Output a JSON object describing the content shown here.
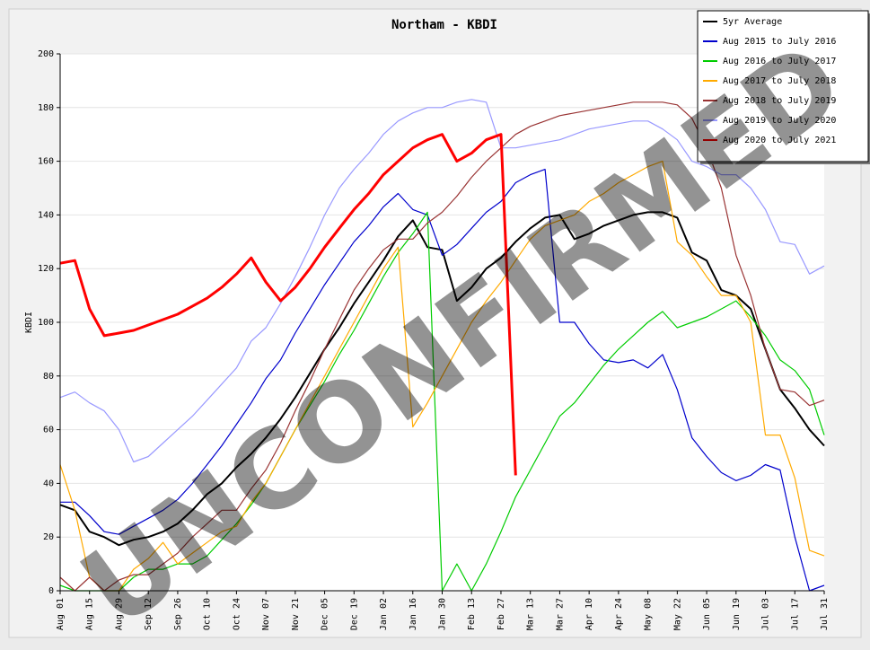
{
  "chart_data": {
    "type": "line",
    "title": "Northam  - KBDI",
    "y_label": "KBDI",
    "watermark": "UNCONFIRMED",
    "categories": [
      "Aug 01",
      null,
      "Aug 15",
      null,
      "Aug 29",
      null,
      "Sep 12",
      null,
      "Sep 26",
      null,
      "Oct 10",
      null,
      "Oct 24",
      null,
      "Nov 07",
      null,
      "Nov 21",
      null,
      "Dec 05",
      null,
      "Dec 19",
      null,
      "Jan 02",
      null,
      "Jan 16",
      null,
      "Jan 30",
      null,
      "Feb 13",
      null,
      "Feb 27",
      null,
      "Mar 13",
      null,
      "Mar 27",
      null,
      "Apr 10",
      null,
      "Apr 24",
      null,
      "May 08",
      null,
      "May 22",
      null,
      "Jun 05",
      null,
      "Jun 19",
      null,
      "Jul 03",
      null,
      "Jul 17",
      null,
      "Jul 31"
    ],
    "ylim": [
      0,
      200
    ],
    "yticks": [
      0,
      20,
      40,
      60,
      80,
      100,
      120,
      140,
      160,
      180,
      200
    ],
    "grid": true,
    "legend": "top-right",
    "series": [
      {
        "name": "5yr Average",
        "color": "#000000",
        "values": [
          32,
          30,
          22,
          20,
          17,
          19,
          20,
          22,
          25,
          30,
          36,
          40,
          46,
          51,
          57,
          64,
          72,
          81,
          90,
          98,
          107,
          115,
          123,
          132,
          138,
          128,
          127,
          108,
          113,
          120,
          124,
          130,
          135,
          139,
          140,
          131,
          133,
          136,
          138,
          140,
          141,
          141,
          139,
          126,
          123,
          112,
          110,
          105,
          90,
          75,
          68,
          60,
          54
        ]
      },
      {
        "name": "Aug 2015 to July 2016",
        "color": "#0000cc",
        "values": [
          33,
          33,
          28,
          22,
          21,
          24,
          27,
          30,
          34,
          40,
          47,
          54,
          62,
          70,
          79,
          86,
          96,
          105,
          114,
          122,
          130,
          136,
          143,
          148,
          142,
          140,
          125,
          129,
          135,
          141,
          145,
          152,
          155,
          157,
          100,
          100,
          92,
          86,
          85,
          86,
          83,
          88,
          75,
          57,
          50,
          44,
          41,
          43,
          47,
          45,
          20,
          0,
          2
        ]
      },
      {
        "name": "Aug 2016 to July 2017",
        "color": "#00cc00",
        "values": [
          2,
          0,
          0,
          0,
          0,
          5,
          8,
          8,
          10,
          10,
          13,
          19,
          25,
          32,
          40,
          50,
          60,
          69,
          78,
          88,
          97,
          107,
          117,
          126,
          133,
          141,
          0,
          10,
          0,
          10,
          22,
          35,
          45,
          55,
          65,
          70,
          77,
          84,
          90,
          95,
          100,
          104,
          98,
          100,
          102,
          105,
          108,
          102,
          95,
          86,
          82,
          75,
          58
        ]
      },
      {
        "name": "Aug 2017 to July 2018",
        "color": "#ffaa00",
        "values": [
          47,
          30,
          5,
          0,
          0,
          8,
          12,
          18,
          10,
          14,
          18,
          22,
          24,
          33,
          40,
          50,
          60,
          70,
          80,
          90,
          100,
          110,
          120,
          128,
          61,
          70,
          80,
          90,
          100,
          108,
          115,
          123,
          131,
          136,
          138,
          140,
          145,
          148,
          152,
          155,
          158,
          160,
          130,
          125,
          117,
          110,
          110,
          100,
          58,
          58,
          42,
          15,
          13
        ]
      },
      {
        "name": "Aug 2018 to July 2019",
        "color": "#993333",
        "values": [
          5,
          0,
          5,
          0,
          4,
          6,
          6,
          10,
          14,
          20,
          25,
          30,
          30,
          38,
          45,
          55,
          67,
          78,
          90,
          101,
          112,
          120,
          127,
          131,
          131,
          137,
          141,
          147,
          154,
          160,
          165,
          170,
          173,
          175,
          177,
          178,
          179,
          180,
          181,
          182,
          182,
          182,
          181,
          176,
          165,
          150,
          125,
          110,
          90,
          75,
          74,
          69,
          71
        ]
      },
      {
        "name": "Aug 2019 to July 2020",
        "color": "#9999ff",
        "values": [
          72,
          74,
          70,
          67,
          60,
          48,
          50,
          55,
          60,
          65,
          71,
          77,
          83,
          93,
          98,
          107,
          117,
          128,
          140,
          150,
          157,
          163,
          170,
          175,
          178,
          180,
          180,
          182,
          183,
          182,
          165,
          165,
          166,
          167,
          168,
          170,
          172,
          173,
          174,
          175,
          175,
          172,
          168,
          160,
          158,
          155,
          155,
          150,
          142,
          130,
          129,
          118,
          121
        ]
      },
      {
        "name": "Aug 2020 to July 2021",
        "color": "#ff0000",
        "values": [
          122,
          123,
          105,
          95,
          96,
          97,
          99,
          101,
          103,
          106,
          109,
          113,
          118,
          124,
          115,
          108,
          113,
          120,
          128,
          135,
          142,
          148,
          155,
          160,
          165,
          168,
          170,
          160,
          163,
          168,
          170,
          43,
          null,
          null,
          null,
          null,
          null,
          null,
          null,
          null,
          null,
          null,
          null,
          null,
          null,
          null,
          null,
          null,
          null,
          null,
          null,
          null,
          null
        ]
      }
    ]
  }
}
